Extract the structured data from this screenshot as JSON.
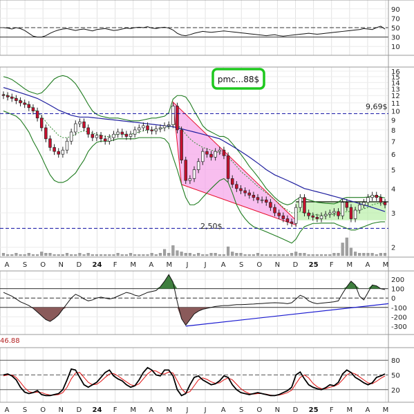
{
  "annotation": {
    "badge": "pmc...88$",
    "resistance_label": "9,69$",
    "support_label": "2,50$",
    "indicator_readout": "46.88"
  },
  "colors": {
    "up_candle": "#ffffff",
    "down_candle": "#c8102e",
    "moving_avg": "#1c1c9e",
    "bollinger": "#1e7b1e",
    "short_ma_dotted": "#2e8b2e",
    "wedge_fill": "#f5a8ea",
    "wedge_border": "#e8102e",
    "base_box_fill": "#b9f0a8",
    "badge_border": "#1ec81e",
    "hline": "#0a0aa0",
    "histogram_fill": "#8a5a5a",
    "stoch_k": "#000000",
    "stoch_d": "#e01010",
    "trendline": "#1a1ad0"
  },
  "chart_data": [
    {
      "type": "line",
      "panel": "oscillator-top",
      "yticks": [
        "90",
        "70",
        "50",
        "30",
        "10"
      ],
      "ylim": [
        0,
        100
      ],
      "reference_levels": [
        30,
        50
      ],
      "values": [
        50,
        49,
        47,
        50,
        48,
        44,
        38,
        32,
        30,
        30,
        33,
        38,
        42,
        45,
        47,
        48,
        46,
        44,
        46,
        47,
        45,
        43,
        46,
        47,
        48,
        46,
        44,
        45,
        47,
        49,
        48,
        50,
        51,
        50,
        52,
        49,
        48,
        50,
        51,
        49,
        45,
        38,
        34,
        33,
        35,
        38,
        40,
        42,
        41,
        40,
        41,
        42,
        43,
        42,
        41,
        40,
        39,
        38,
        37,
        36,
        35,
        34,
        33,
        34,
        35,
        33,
        32,
        33,
        34,
        35,
        36,
        37,
        38,
        37,
        36,
        37,
        38,
        39,
        40,
        41,
        42,
        43,
        44,
        45,
        46,
        48,
        47,
        46,
        50,
        53,
        47
      ]
    },
    {
      "type": "candlestick",
      "panel": "price",
      "yticks": [
        "16",
        "15",
        "14",
        "13",
        "12",
        "11",
        "10",
        "9",
        "8",
        "7",
        "6",
        "5",
        "4",
        "3",
        "2"
      ],
      "ylim": [
        1.9,
        16
      ],
      "scale": "log",
      "x_ticks": [
        "A",
        "S",
        "O",
        "N",
        "D",
        "24",
        "F",
        "M",
        "A",
        "M",
        "J",
        "J",
        "A",
        "S",
        "O",
        "N",
        "D",
        "25",
        "F",
        "M",
        "A",
        "M"
      ],
      "horizontal_levels": [
        9.69,
        2.5
      ],
      "close": [
        12.0,
        11.8,
        11.6,
        11.3,
        11.0,
        10.8,
        10.4,
        10.0,
        9.2,
        8.2,
        7.2,
        6.5,
        6.2,
        6.0,
        6.3,
        7.0,
        7.8,
        8.6,
        8.8,
        8.2,
        7.6,
        7.3,
        7.5,
        7.2,
        7.0,
        7.3,
        7.6,
        7.8,
        7.6,
        7.4,
        7.6,
        8.0,
        8.2,
        8.4,
        8.0,
        7.9,
        8.1,
        8.2,
        8.4,
        8.5,
        10.6,
        8.0,
        5.6,
        4.4,
        4.5,
        5.0,
        5.5,
        6.2,
        6.0,
        5.8,
        6.2,
        6.3,
        5.9,
        4.5,
        4.2,
        4.0,
        3.9,
        3.8,
        3.7,
        3.6,
        3.5,
        3.5,
        3.4,
        3.2,
        3.0,
        2.9,
        2.8,
        2.7,
        2.65,
        3.2,
        3.6,
        3.0,
        2.9,
        2.85,
        2.8,
        2.9,
        2.95,
        3.0,
        3.05,
        2.9,
        3.4,
        3.2,
        2.8,
        3.1,
        3.3,
        3.4,
        3.6,
        3.7,
        3.6,
        3.4,
        3.3
      ],
      "moving_average": [
        13.2,
        13.0,
        12.8,
        12.6,
        12.4,
        12.2,
        12.0,
        11.8,
        11.6,
        11.3,
        11.0,
        10.7,
        10.4,
        10.1,
        9.9,
        9.7,
        9.5,
        9.4,
        9.3,
        9.3,
        9.3,
        9.25,
        9.2,
        9.15,
        9.1,
        9.05,
        9.0,
        8.95,
        8.9,
        8.85,
        8.8,
        8.75,
        8.7,
        8.65,
        8.6,
        8.55,
        8.5,
        8.45,
        8.4,
        8.35,
        8.3,
        8.2,
        8.1,
        8.0,
        7.9,
        7.8,
        7.7,
        7.6,
        7.5,
        7.4,
        7.3,
        7.2,
        7.0,
        6.8,
        6.6,
        6.4,
        6.2,
        6.0,
        5.8,
        5.6,
        5.4,
        5.2,
        5.0,
        4.85,
        4.7,
        4.6,
        4.5,
        4.4,
        4.3,
        4.2,
        4.1,
        4.0,
        3.95,
        3.9,
        3.85,
        3.8,
        3.75,
        3.7,
        3.65,
        3.6,
        3.55,
        3.5,
        3.45,
        3.4,
        3.35,
        3.3,
        3.25,
        3.2,
        3.15,
        3.1,
        3.05
      ],
      "bollinger_upper": [
        15.0,
        14.8,
        14.5,
        14.0,
        13.5,
        13.0,
        12.6,
        12.4,
        12.2,
        12.4,
        13.0,
        13.8,
        14.6,
        15.0,
        15.2,
        15.0,
        14.5,
        13.8,
        12.8,
        11.8,
        10.8,
        10.0,
        9.6,
        9.4,
        9.3,
        9.2,
        9.2,
        9.2,
        9.1,
        9.0,
        8.9,
        8.9,
        8.9,
        9.0,
        9.1,
        9.2,
        9.2,
        9.3,
        9.4,
        9.8,
        11.5,
        12.0,
        12.0,
        11.8,
        11.0,
        10.0,
        9.2,
        8.4,
        8.0,
        7.8,
        7.6,
        7.4,
        7.4,
        7.2,
        6.8,
        6.4,
        6.0,
        5.6,
        5.2,
        4.9,
        4.6,
        4.3,
        4.0,
        3.8,
        3.6,
        3.45,
        3.35,
        3.3,
        3.35,
        3.5,
        3.6,
        3.55,
        3.5,
        3.45,
        3.4,
        3.38,
        3.36,
        3.35,
        3.34,
        3.4,
        3.55,
        3.6,
        3.6,
        3.6,
        3.6,
        3.6,
        3.62,
        3.65,
        3.66,
        3.62,
        3.58
      ],
      "bollinger_lower": [
        10.0,
        9.8,
        9.6,
        9.4,
        9.0,
        8.4,
        7.8,
        7.0,
        6.4,
        5.8,
        5.2,
        4.7,
        4.4,
        4.3,
        4.3,
        4.4,
        4.6,
        4.8,
        5.2,
        5.6,
        6.2,
        6.6,
        6.9,
        7.0,
        7.0,
        7.0,
        7.1,
        7.2,
        7.2,
        7.2,
        7.2,
        7.2,
        7.3,
        7.3,
        7.3,
        7.3,
        7.3,
        7.3,
        7.2,
        6.8,
        5.8,
        5.0,
        4.2,
        3.6,
        3.3,
        3.3,
        3.4,
        3.6,
        3.8,
        4.0,
        4.2,
        4.4,
        4.5,
        4.3,
        3.8,
        3.3,
        3.0,
        2.8,
        2.65,
        2.55,
        2.5,
        2.45,
        2.4,
        2.35,
        2.3,
        2.25,
        2.2,
        2.15,
        2.1,
        2.2,
        2.4,
        2.55,
        2.6,
        2.65,
        2.65,
        2.66,
        2.66,
        2.66,
        2.66,
        2.6,
        2.55,
        2.5,
        2.45,
        2.45,
        2.5,
        2.55,
        2.6,
        2.65,
        2.68,
        2.7,
        2.7
      ],
      "short_ma": [
        12.2,
        12.0,
        11.8,
        11.6,
        11.3,
        11.0,
        10.7,
        10.3,
        9.9,
        9.4,
        8.8,
        8.3,
        7.9,
        7.5,
        7.3,
        7.3,
        7.4,
        7.6,
        7.8,
        7.9,
        7.8,
        7.7,
        7.6,
        7.5,
        7.4,
        7.4,
        7.5,
        7.6,
        7.6,
        7.6,
        7.6,
        7.7,
        7.8,
        7.9,
        8.0,
        8.0,
        8.0,
        8.1,
        8.2,
        8.3,
        8.6,
        8.5,
        8.1,
        7.6,
        7.2,
        6.9,
        6.7,
        6.5,
        6.4,
        6.3,
        6.2,
        6.1,
        6.0,
        5.8,
        5.5,
        5.2,
        4.9,
        4.7,
        4.5,
        4.3,
        4.1,
        3.95,
        3.8,
        3.65,
        3.5,
        3.35,
        3.2,
        3.1,
        3.0,
        3.0,
        3.05,
        3.0,
        2.98,
        2.95,
        2.93,
        2.92,
        2.92,
        2.93,
        2.95,
        2.96,
        3.0,
        3.05,
        3.05,
        3.05,
        3.1,
        3.15,
        3.2,
        3.3,
        3.35,
        3.35,
        3.35
      ]
    },
    {
      "type": "bar",
      "panel": "volume",
      "values": [
        2,
        1,
        1,
        2,
        1,
        1,
        2,
        1,
        1,
        3,
        2,
        2,
        1,
        1,
        1,
        2,
        1,
        1,
        2,
        1,
        2,
        1,
        1,
        1,
        1,
        1,
        1,
        2,
        1,
        1,
        2,
        1,
        1,
        1,
        1,
        2,
        1,
        2,
        5,
        2,
        8,
        4,
        3,
        2,
        2,
        1,
        2,
        1,
        1,
        2,
        2,
        1,
        1,
        7,
        3,
        2,
        2,
        1,
        1,
        1,
        2,
        1,
        1,
        1,
        1,
        1,
        1,
        1,
        2,
        3,
        2,
        2,
        1,
        1,
        1,
        1,
        1,
        1,
        2,
        2,
        10,
        14,
        6,
        3,
        2,
        2,
        2,
        2,
        1,
        2,
        2
      ]
    },
    {
      "type": "area",
      "panel": "cci",
      "yticks": [
        "200",
        "100",
        "0",
        "-100",
        "-200",
        "-300"
      ],
      "ylim": [
        -360,
        260
      ],
      "reference_levels": [
        100,
        0,
        -100
      ],
      "values": [
        60,
        40,
        20,
        -10,
        -40,
        -60,
        -80,
        -110,
        -150,
        -190,
        -230,
        -250,
        -220,
        -180,
        -120,
        -60,
        0,
        40,
        20,
        -10,
        -30,
        -20,
        0,
        10,
        0,
        -10,
        0,
        20,
        40,
        60,
        50,
        30,
        20,
        40,
        60,
        70,
        80,
        120,
        180,
        250,
        170,
        -40,
        -220,
        -290,
        -230,
        -170,
        -140,
        -120,
        -110,
        -100,
        -90,
        -85,
        -80,
        -80,
        -75,
        -70,
        -70,
        -68,
        -66,
        -64,
        -60,
        -58,
        -55,
        -52,
        -50,
        -52,
        -55,
        -60,
        -50,
        -10,
        30,
        10,
        -30,
        -50,
        -60,
        -55,
        -50,
        -45,
        -40,
        -30,
        50,
        120,
        180,
        140,
        20,
        -20,
        60,
        140,
        130,
        100,
        90
      ]
    },
    {
      "type": "line",
      "panel": "stochastic",
      "yticks": [
        "80",
        "50",
        "20"
      ],
      "ylim": [
        0,
        100
      ],
      "reference_levels": [
        80,
        50,
        20
      ],
      "series": [
        {
          "values": [
            50,
            52,
            48,
            40,
            25,
            15,
            12,
            14,
            18,
            10,
            8,
            8,
            10,
            12,
            20,
            40,
            62,
            60,
            45,
            30,
            25,
            30,
            35,
            45,
            55,
            60,
            48,
            42,
            38,
            30,
            25,
            28,
            40,
            55,
            65,
            60,
            50,
            48,
            60,
            60,
            48,
            20,
            8,
            12,
            30,
            45,
            48,
            40,
            35,
            30,
            32,
            38,
            48,
            45,
            30,
            20,
            14,
            12,
            10,
            12,
            14,
            12,
            10,
            8,
            8,
            10,
            14,
            18,
            25,
            50,
            56,
            42,
            30,
            25,
            22,
            20,
            24,
            30,
            28,
            35,
            52,
            60,
            55,
            45,
            40,
            34,
            30,
            34,
            45,
            48,
            52
          ]
        },
        {
          "values": [
            48,
            50,
            50,
            45,
            35,
            24,
            16,
            14,
            15,
            14,
            11,
            9,
            9,
            10,
            14,
            25,
            42,
            54,
            55,
            45,
            35,
            30,
            31,
            37,
            45,
            52,
            53,
            48,
            42,
            36,
            30,
            28,
            32,
            42,
            52,
            59,
            58,
            53,
            52,
            56,
            54,
            38,
            22,
            13,
            16,
            28,
            40,
            44,
            41,
            36,
            33,
            34,
            40,
            44,
            40,
            31,
            22,
            16,
            12,
            11,
            12,
            12,
            11,
            9,
            8,
            9,
            11,
            14,
            19,
            32,
            45,
            50,
            44,
            33,
            26,
            22,
            22,
            25,
            27,
            31,
            40,
            50,
            55,
            52,
            46,
            40,
            34,
            32,
            37,
            43,
            48
          ]
        }
      ]
    }
  ]
}
